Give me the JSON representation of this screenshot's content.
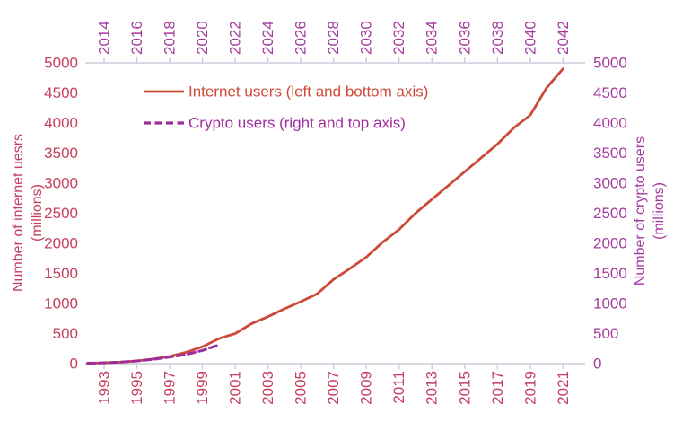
{
  "chart_data": {
    "type": "line",
    "title": "",
    "background": "#ffffff",
    "grid": false,
    "axes": {
      "bottom": {
        "tick_years": [
          1993,
          1995,
          1997,
          1999,
          2001,
          2003,
          2005,
          2007,
          2009,
          2011,
          2013,
          2015,
          2017,
          2019,
          2021
        ],
        "xlim": [
          1992,
          2022
        ],
        "tick_color": "#c53f5e",
        "axis_line_color": "#cbccd8"
      },
      "top": {
        "tick_years": [
          2014,
          2016,
          2018,
          2020,
          2022,
          2024,
          2026,
          2028,
          2030,
          2032,
          2034,
          2036,
          2038,
          2040,
          2042
        ],
        "xlim": [
          2013,
          2043
        ],
        "tick_color": "#a43a9e",
        "axis_line_color": "#cbccd8"
      },
      "left": {
        "title_line1": "Number of internet uesrs",
        "title_line2": "(millions)",
        "ticks": [
          0,
          500,
          1000,
          1500,
          2000,
          2500,
          3000,
          3500,
          4000,
          4500,
          5000
        ],
        "ylim": [
          0,
          5000
        ],
        "color": "#c53f5e"
      },
      "right": {
        "title_line1": "Number of crypto users",
        "title_line2": "(millions)",
        "ticks": [
          0,
          500,
          1000,
          1500,
          2000,
          2500,
          3000,
          3500,
          4000,
          4500,
          5000
        ],
        "ylim": [
          0,
          5000
        ],
        "color": "#a43a9e"
      }
    },
    "legend": {
      "position": "upper-left-inside",
      "items": [
        {
          "label": "Internet users (left and bottom axis)",
          "color": "#cd4a38",
          "style": "solid"
        },
        {
          "label": "Crypto users (right and top axis)",
          "color": "#9d2d9d",
          "style": "dashed"
        }
      ]
    },
    "series": [
      {
        "name": "Internet users (left and bottom axis)",
        "axes": "bottom-left",
        "color": "#cd4a38",
        "style": "solid",
        "points": [
          [
            1992,
            10
          ],
          [
            1993,
            14
          ],
          [
            1994,
            25
          ],
          [
            1995,
            45
          ],
          [
            1996,
            77
          ],
          [
            1997,
            120
          ],
          [
            1998,
            188
          ],
          [
            1999,
            280
          ],
          [
            2000,
            415
          ],
          [
            2001,
            500
          ],
          [
            2002,
            665
          ],
          [
            2003,
            780
          ],
          [
            2004,
            910
          ],
          [
            2005,
            1030
          ],
          [
            2006,
            1160
          ],
          [
            2007,
            1400
          ],
          [
            2008,
            1580
          ],
          [
            2009,
            1770
          ],
          [
            2010,
            2020
          ],
          [
            2011,
            2230
          ],
          [
            2012,
            2500
          ],
          [
            2013,
            2730
          ],
          [
            2014,
            2960
          ],
          [
            2015,
            3190
          ],
          [
            2016,
            3420
          ],
          [
            2017,
            3650
          ],
          [
            2018,
            3920
          ],
          [
            2019,
            4130
          ],
          [
            2020,
            4585
          ],
          [
            2021,
            4900
          ]
        ]
      },
      {
        "name": "Crypto users (right and top axis)",
        "axes": "top-right",
        "color": "#9d2d9d",
        "style": "dashed",
        "points": [
          [
            2013,
            5
          ],
          [
            2014,
            15
          ],
          [
            2015,
            25
          ],
          [
            2016,
            45
          ],
          [
            2017,
            70
          ],
          [
            2018,
            110
          ],
          [
            2019,
            150
          ],
          [
            2020,
            220
          ],
          [
            2021,
            310
          ]
        ]
      }
    ]
  }
}
